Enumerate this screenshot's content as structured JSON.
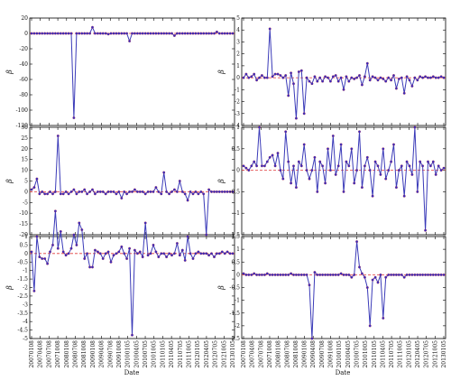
{
  "figure": {
    "xlabel": "Date"
  },
  "colors": {
    "line": "#3a3ab8",
    "marker": "#2c2cc8",
    "zero_line": "#e03a3a",
    "axes": "#000000"
  },
  "chart_data": [
    {
      "type": "line",
      "ylabel": "β",
      "ylim": [
        -120,
        20
      ],
      "yticks": [
        20,
        0,
        -20,
        -40,
        -60,
        -80,
        -100,
        -120
      ],
      "series": [
        {
          "values": [
            0,
            0,
            0,
            0,
            0,
            0,
            0,
            0,
            0,
            0,
            0,
            0,
            0,
            0,
            0,
            0,
            -110,
            0,
            0,
            0,
            0,
            0,
            0,
            8,
            0,
            0,
            0,
            0,
            0,
            -1,
            0,
            0,
            0,
            0,
            0,
            0,
            0,
            -10,
            0,
            0,
            0,
            0,
            0,
            0,
            0,
            0,
            0,
            0,
            0,
            0,
            0,
            0,
            0,
            0,
            -3,
            0,
            0,
            0,
            0,
            0,
            0,
            0,
            0,
            0,
            0,
            0,
            0,
            0,
            0,
            0,
            2,
            0,
            0,
            0,
            0,
            0,
            0
          ]
        }
      ]
    },
    {
      "type": "line",
      "ylabel": "β",
      "ylim": [
        -4,
        5
      ],
      "yticks": [
        5,
        4,
        3,
        2,
        1,
        0,
        -1,
        -2,
        -3,
        -4
      ],
      "series": [
        {
          "values": [
            0,
            0.3,
            0,
            0.1,
            0.3,
            -0.2,
            0,
            0.2,
            0,
            0,
            4.1,
            0.1,
            0.3,
            0.3,
            0.2,
            0,
            0.2,
            -1.5,
            0.4,
            -0.5,
            -3.4,
            0.5,
            0.6,
            -3,
            0,
            -0.3,
            -0.5,
            0.1,
            -0.3,
            0,
            -0.3,
            0.1,
            0,
            -0.3,
            0.1,
            0.2,
            -0.3,
            0,
            -1,
            0.1,
            -0.3,
            0,
            -0.1,
            0,
            0.2,
            -0.6,
            0.1,
            1.2,
            -0.2,
            0.1,
            0,
            -0.2,
            0,
            -0.1,
            -0.3,
            0,
            -0.2,
            0.2,
            -0.9,
            -0.1,
            0,
            -1.3,
            0.1,
            -0.2,
            -0.7,
            0,
            -0.2,
            0.1,
            0,
            0.1,
            0,
            0,
            0.1,
            0,
            0,
            0.1,
            0
          ]
        }
      ]
    },
    {
      "type": "line",
      "ylabel": "β",
      "ylim": [
        -20,
        30
      ],
      "yticks": [
        30,
        25,
        20,
        15,
        10,
        5,
        0,
        -5,
        -10,
        -15,
        -20
      ],
      "series": [
        {
          "values": [
            1,
            2,
            6,
            -1,
            0,
            -1,
            -1,
            0,
            -1,
            0,
            26,
            -1,
            -1,
            0,
            -1,
            0,
            1,
            -1,
            0,
            0,
            1,
            -1,
            0,
            1,
            -1,
            0,
            0,
            0,
            -1,
            0,
            0,
            0,
            -1,
            0,
            -3,
            0,
            -1,
            0,
            0,
            1,
            0,
            0,
            0,
            -1,
            0,
            0,
            0,
            2,
            0,
            -1,
            9,
            0,
            -1,
            0,
            1,
            0,
            5,
            0,
            -1,
            -4,
            0,
            -1,
            0,
            -1,
            0,
            -1,
            -20,
            1,
            0,
            0,
            0,
            0,
            0,
            0,
            0,
            0,
            0
          ]
        }
      ]
    },
    {
      "type": "line",
      "ylabel": "β",
      "ylim": [
        -1.5,
        1
      ],
      "yticks": [
        1,
        0.5,
        0,
        -0.5,
        -1,
        -1.5
      ],
      "series": [
        {
          "values": [
            0.1,
            0.05,
            0,
            0.1,
            0.2,
            0.1,
            1,
            0.1,
            0.1,
            0.2,
            0.3,
            0.35,
            0.1,
            0.4,
            0,
            -0.2,
            0.9,
            0.2,
            -0.3,
            0.1,
            -0.4,
            0.2,
            0.1,
            0.6,
            0,
            -0.2,
            0,
            0.3,
            -0.5,
            0.2,
            0.1,
            -0.3,
            0.5,
            0,
            0.8,
            -0.1,
            0.1,
            0.6,
            -0.5,
            0.2,
            0.1,
            0.5,
            -0.3,
            0,
            0.9,
            -0.4,
            0.1,
            0.3,
            0,
            -0.6,
            0.2,
            0.1,
            -0.1,
            0.5,
            -0.2,
            0,
            0.2,
            0.6,
            -0.4,
            0,
            0.1,
            -0.6,
            0.2,
            0.1,
            -0.1,
            1,
            -0.5,
            0.2,
            0.1,
            -1.4,
            0.2,
            0.1,
            0.2,
            -0.1,
            0.1,
            0,
            0.05
          ]
        }
      ]
    },
    {
      "type": "line",
      "ylabel": "β",
      "ylim": [
        -5,
        1
      ],
      "yticks": [
        1,
        0.5,
        0,
        -0.5,
        -1,
        -1.5,
        -2,
        -2.5,
        -3,
        -3.5,
        -4,
        -4.5,
        -5
      ],
      "series": [
        {
          "values": [
            0.1,
            -2.2,
            1,
            -0.2,
            -0.3,
            -0.3,
            -0.6,
            0.1,
            0.5,
            2.5,
            0.3,
            1.3,
            0.1,
            -0.1,
            0,
            0.3,
            1.1,
            0.5,
            1.8,
            1.4,
            -0.3,
            0,
            -0.8,
            -0.8,
            0.2,
            0.1,
            0,
            -0.3,
            0,
            0.1,
            -0.5,
            -0.1,
            0,
            0.1,
            0.4,
            0,
            -0.3,
            0.3,
            -4.8,
            0.2,
            0,
            0.1,
            -0.2,
            1.8,
            -0.1,
            0,
            0.5,
            0.1,
            -0.2,
            0,
            0,
            -0.2,
            0,
            -0.1,
            0,
            0.6,
            -0.1,
            0.2,
            -0.4,
            1,
            0,
            -0.3,
            0,
            0.1,
            0,
            0,
            0,
            -0.1,
            0,
            -0.2,
            0,
            0,
            0.1,
            0,
            0.1,
            0,
            0
          ]
        }
      ]
    },
    {
      "type": "line",
      "ylabel": "β",
      "ylim": [
        -2.5,
        1.5
      ],
      "yticks": [
        1.5,
        1,
        0.5,
        0,
        -0.5,
        -1,
        -1.5,
        -2,
        -2.5
      ],
      "series": [
        {
          "values": [
            0.05,
            0,
            0,
            0,
            0.05,
            0,
            0,
            0,
            0,
            0.05,
            0,
            0,
            0,
            0,
            0,
            0,
            0,
            0,
            0.05,
            0,
            0,
            0,
            0,
            0,
            0,
            -0.4,
            -2.5,
            0.1,
            0,
            0,
            0,
            0,
            0,
            0,
            0,
            0,
            0,
            0.05,
            0,
            0,
            0,
            -0.1,
            0,
            1.3,
            0.3,
            0.05,
            -0.1,
            -0.5,
            -2,
            -0.2,
            -0.1,
            -0.3,
            0,
            -1.7,
            -0.1,
            0,
            0,
            0,
            0,
            0,
            0,
            -0.1,
            0,
            0,
            0,
            0,
            0,
            0,
            0,
            0,
            0,
            0,
            0,
            0,
            0,
            0,
            0
          ]
        }
      ]
    }
  ],
  "x_tick_labels": [
    "20070108",
    "20070408",
    "20070708",
    "20071008",
    "20080108",
    "20080708",
    "20081008",
    "20090108",
    "20090408",
    "20090708",
    "20091008",
    "20100105",
    "20100405",
    "20100705",
    "20101005",
    "20110105",
    "20110405",
    "20110705",
    "20111005",
    "20120105",
    "20120405",
    "20120705",
    "20121005",
    "20130105"
  ]
}
